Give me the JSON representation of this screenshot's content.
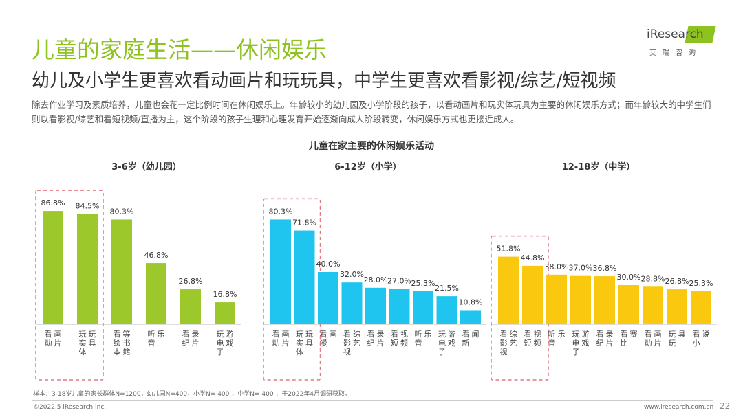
{
  "header": {
    "title": "儿童的家庭生活——休闲娱乐",
    "subtitle": "幼儿及小学生更喜欢看动画片和玩玩具，中学生更喜欢看影视/综艺/短视频",
    "description": "除去作业学习及素质培养，儿童也会花一定比例时间在休闲娱乐上。年龄较小的幼儿园及小学阶段的孩子，以看动画片和玩实体玩具为主要的休闲娱乐方式；而年龄较大的中学生们则以看影视/综艺和看短视频/直播为主，这个阶段的孩子生理和心理发育开始逐渐向成人阶段转变，休闲娱乐方式也更接近成人。"
  },
  "logo": {
    "text": "iResearch",
    "subtext": "艾瑞咨询"
  },
  "chart_data": {
    "type": "bar",
    "title": "儿童在家主要的休闲娱乐活动",
    "unit": "%",
    "groups": [
      {
        "name": "3-6岁（幼儿园）",
        "color": "#9dc82b",
        "categories": [
          "看动画片",
          "玩实体玩具",
          "看绘本等书籍",
          "听音乐",
          "看纪录片",
          "玩电子游戏"
        ],
        "values": [
          86.8,
          84.5,
          80.3,
          46.8,
          26.8,
          16.8
        ],
        "labels": [
          "86.8%",
          "84.5%",
          "80.3%",
          "46.8%",
          "26.8%",
          "16.8%"
        ],
        "highlighted": 2
      },
      {
        "name": "6-12岁（小学）",
        "color": "#1fc4ef",
        "categories": [
          "看动画片",
          "玩实体玩具",
          "看漫画",
          "看影视综艺",
          "看纪录片",
          "看短视频",
          "听音乐",
          "玩电子游戏",
          "看新闻"
        ],
        "values": [
          80.3,
          71.8,
          40.0,
          32.0,
          28.0,
          27.0,
          25.3,
          21.5,
          10.8
        ],
        "labels": [
          "80.3%",
          "71.8%",
          "40.0%",
          "32.0%",
          "28.0%",
          "27.0%",
          "25.3%",
          "21.5%",
          "10.8%"
        ],
        "highlighted": 2
      },
      {
        "name": "12-18岁（中学）",
        "color": "#fac90f",
        "categories": [
          "看影视综艺",
          "看短视频",
          "听音乐",
          "玩电子游戏",
          "看纪录片",
          "看比赛",
          "看动画片",
          "玩玩具",
          "看小说"
        ],
        "values": [
          51.8,
          44.8,
          38.0,
          37.0,
          36.8,
          30.0,
          28.8,
          26.8,
          25.3
        ],
        "labels": [
          "51.8%",
          "44.8%",
          "38.0%",
          "37.0%",
          "36.8%",
          "30.0%",
          "28.8%",
          "26.8%",
          "25.3%"
        ],
        "highlighted": 2
      }
    ]
  },
  "footer": {
    "note": "样本：3-18岁儿童的家长群体N=1200，幼儿园N=400，小学N= 400 ，中学N= 400 ，于2022年4月调研获取。",
    "copyright": "©2022.5 iResearch Inc.",
    "website": "www.iresearch.com.cn",
    "page": "22"
  }
}
